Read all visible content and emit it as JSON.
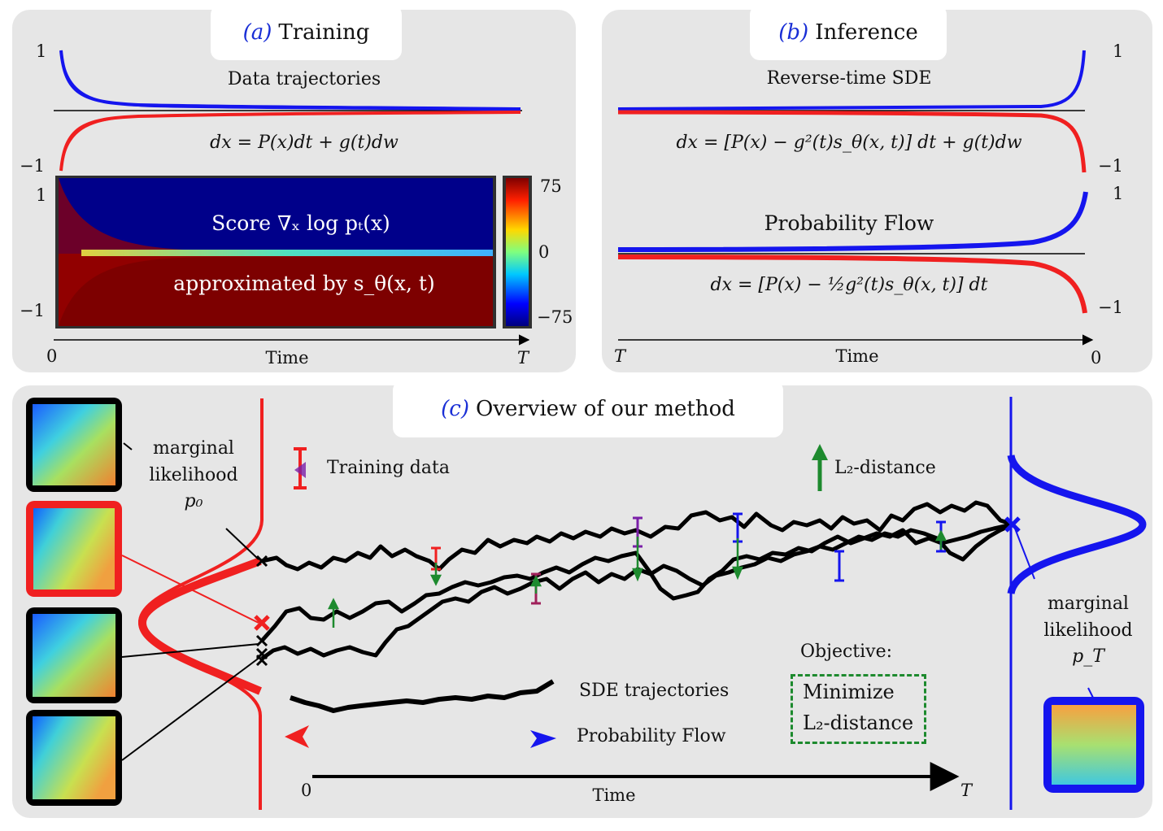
{
  "panel_a": {
    "tab_letter": "(a)",
    "tab_title": "Training",
    "trajectories_label": "Data trajectories",
    "equation": "dx = P(x)dt + g(t)dw",
    "y_top": "1",
    "y_bottom": "−1",
    "heatmap_y_top": "1",
    "heatmap_y_bottom": "−1",
    "heatmap_line1": "Score ∇ₓ log pₜ(x)",
    "heatmap_line2": "approximated by s_θ(x, t)",
    "colorbar_max": "75",
    "colorbar_mid": "0",
    "colorbar_min": "−75",
    "axis_start": "0",
    "axis_label": "Time",
    "axis_end": "T"
  },
  "panel_b": {
    "tab_letter": "(b)",
    "tab_title": "Inference",
    "sde_label": "Reverse-time SDE",
    "sde_equation": "dx = [P(x) − g²(t)s_θ(x, t)] dt + g(t)dw",
    "sde_y_top": "1",
    "sde_y_bottom": "−1",
    "flow_label": "Probability Flow",
    "flow_equation": "dx = [P(x) − ½g²(t)s_θ(x, t)] dt",
    "flow_y_top": "1",
    "flow_y_bottom": "−1",
    "axis_start": "T",
    "axis_label": "Time",
    "axis_end": "0"
  },
  "panel_c": {
    "tab_letter": "(c)",
    "tab_title": "Overview of our method",
    "left_marginal": [
      "marginal",
      "likelihood",
      "p₀"
    ],
    "right_marginal": [
      "marginal",
      "likelihood",
      "p_T"
    ],
    "legend_training": "Training data",
    "legend_l2": "L₂-distance",
    "legend_sde": "SDE trajectories",
    "legend_flow": "Probability Flow",
    "objective_title": "Objective:",
    "objective_line1": "Minimize",
    "objective_line2": "L₂-distance",
    "axis_start": "0",
    "axis_label": "Time",
    "axis_end": "T"
  },
  "colors": {
    "red": "#f02020",
    "blue": "#1515ee",
    "green": "#1d8a2e",
    "purple": "#7a1fa8",
    "tab_accent": "#1a2fd6",
    "panel_bg": "#e6e6e6",
    "heatmap_top": "#00008a",
    "heatmap_bottom": "#7d0000"
  }
}
